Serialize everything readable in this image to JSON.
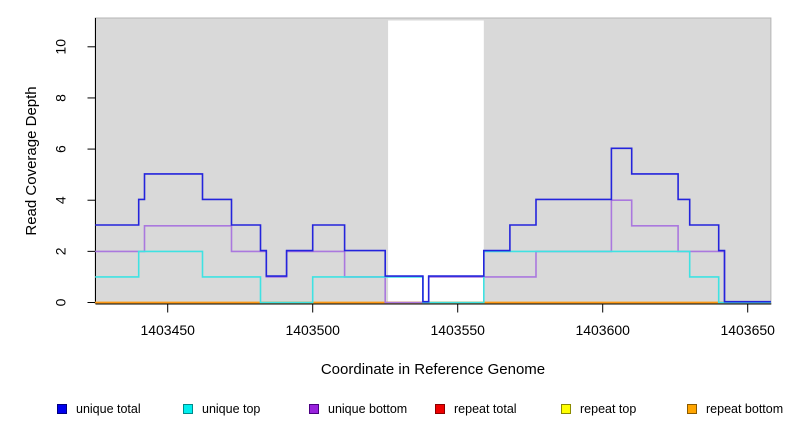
{
  "chart_data": {
    "type": "line",
    "subtype": "step-coverage",
    "title": "",
    "xlabel": "Coordinate in Reference Genome",
    "ylabel": "Read Coverage Depth",
    "xlim": [
      1403425,
      1403658
    ],
    "ylim": [
      0,
      11.1
    ],
    "x_ticks": [
      "1403450",
      "1403500",
      "1403550",
      "1403600",
      "1403650"
    ],
    "x_tick_values": [
      1403450,
      1403500,
      1403550,
      1403600,
      1403650
    ],
    "y_ticks": [
      "0",
      "2",
      "4",
      "6",
      "8",
      "10"
    ],
    "y_tick_values": [
      0,
      2,
      4,
      6,
      8,
      10
    ],
    "grid": false,
    "legend_position": "bottom",
    "background": {
      "shaded_color": "#d9d9d9",
      "shaded_border": "#b5b5b5",
      "shaded_regions": [
        [
          1403425,
          1403658
        ]
      ],
      "white_gap_regions": [
        [
          1403526,
          1403559
        ]
      ]
    },
    "series": [
      {
        "name": "unique total",
        "color": "#2424dc",
        "legend_fill": "#0000ee",
        "legend_border": "#000080",
        "points": [
          [
            1403425,
            3
          ],
          [
            1403440,
            4
          ],
          [
            1403442,
            5
          ],
          [
            1403462,
            4
          ],
          [
            1403472,
            3
          ],
          [
            1403482,
            2
          ],
          [
            1403484,
            1
          ],
          [
            1403491,
            2
          ],
          [
            1403500,
            3
          ],
          [
            1403511,
            2
          ],
          [
            1403525,
            1
          ],
          [
            1403538,
            0
          ],
          [
            1403540,
            1
          ],
          [
            1403559,
            2
          ],
          [
            1403568,
            3
          ],
          [
            1403577,
            4
          ],
          [
            1403603,
            6
          ],
          [
            1403610,
            5
          ],
          [
            1403626,
            4
          ],
          [
            1403630,
            3
          ],
          [
            1403640,
            2
          ],
          [
            1403642,
            0
          ]
        ]
      },
      {
        "name": "unique top",
        "color": "#3fe2e2",
        "legend_fill": "#00eeee",
        "legend_border": "#008b8b",
        "points": [
          [
            1403425,
            1
          ],
          [
            1403440,
            2
          ],
          [
            1403462,
            1
          ],
          [
            1403482,
            0
          ],
          [
            1403500,
            1
          ],
          [
            1403538,
            0
          ],
          [
            1403559,
            2
          ],
          [
            1403630,
            1
          ],
          [
            1403640,
            0
          ]
        ]
      },
      {
        "name": "unique bottom",
        "color": "#aa78de",
        "legend_fill": "#9922dd",
        "legend_border": "#4b0082",
        "points": [
          [
            1403425,
            2
          ],
          [
            1403442,
            3
          ],
          [
            1403472,
            2
          ],
          [
            1403484,
            1
          ],
          [
            1403491,
            2
          ],
          [
            1403511,
            1
          ],
          [
            1403525,
            0
          ],
          [
            1403540,
            1
          ],
          [
            1403577,
            2
          ],
          [
            1403603,
            4
          ],
          [
            1403610,
            3
          ],
          [
            1403626,
            2
          ],
          [
            1403642,
            0
          ]
        ]
      },
      {
        "name": "repeat total",
        "color": "#d83a3a",
        "legend_fill": "#ee0000",
        "legend_border": "#8b0000",
        "points": [
          [
            1403425,
            0
          ]
        ]
      },
      {
        "name": "repeat top",
        "color": "#f5f53c",
        "legend_fill": "#ffff00",
        "legend_border": "#8b8b00",
        "points": [
          [
            1403425,
            0
          ]
        ]
      },
      {
        "name": "repeat bottom",
        "color": "#ff9814",
        "legend_fill": "#ffa500",
        "legend_border": "#8b5a00",
        "points": [
          [
            1403425,
            0
          ],
          [
            1403642,
            0
          ]
        ]
      }
    ]
  }
}
